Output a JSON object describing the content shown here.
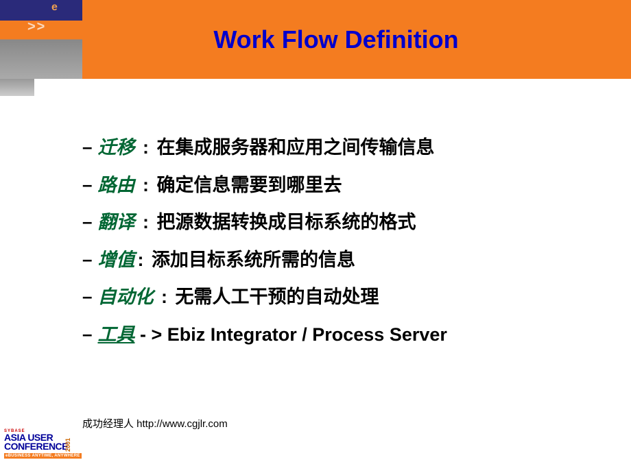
{
  "colors": {
    "banner_bg": "#f47c20",
    "title_color": "#0000cc",
    "term_color": "#006633",
    "text_color": "#000000",
    "corner_dark": "#2a2a7a",
    "logo_blue": "#000099",
    "logo_red": "#cc0000"
  },
  "header": {
    "title": "Work Flow Definition",
    "corner_e": "e",
    "corner_arrows": ">>"
  },
  "bullets": [
    {
      "term": "迁移",
      "colon": " : ",
      "desc": "在集成服务器和应用之间传输信息"
    },
    {
      "term": "路由",
      "colon": " : ",
      "desc": "确定信息需要到哪里去"
    },
    {
      "term": "翻译",
      "colon": " : ",
      "desc": "把源数据转换成目标系统的格式"
    },
    {
      "term": "增值",
      "colon": ": ",
      "desc": "添加目标系统所需的信息"
    },
    {
      "term": "自动化",
      "colon": " : ",
      "desc": "无需人工干预的自动处理"
    }
  ],
  "tool_bullet": {
    "term": "工具",
    "desc": " - > Ebiz Integrator / Process Server"
  },
  "footer": {
    "text": "成功经理人 http://www.cgjlr.com",
    "logo_brand": "SYBASE",
    "logo_line1": "ASIA USER",
    "logo_line2": "CONFERENCE",
    "logo_year": "2001",
    "logo_tagline": "eBUSINESS ANYTIME, ANYWHERE"
  }
}
